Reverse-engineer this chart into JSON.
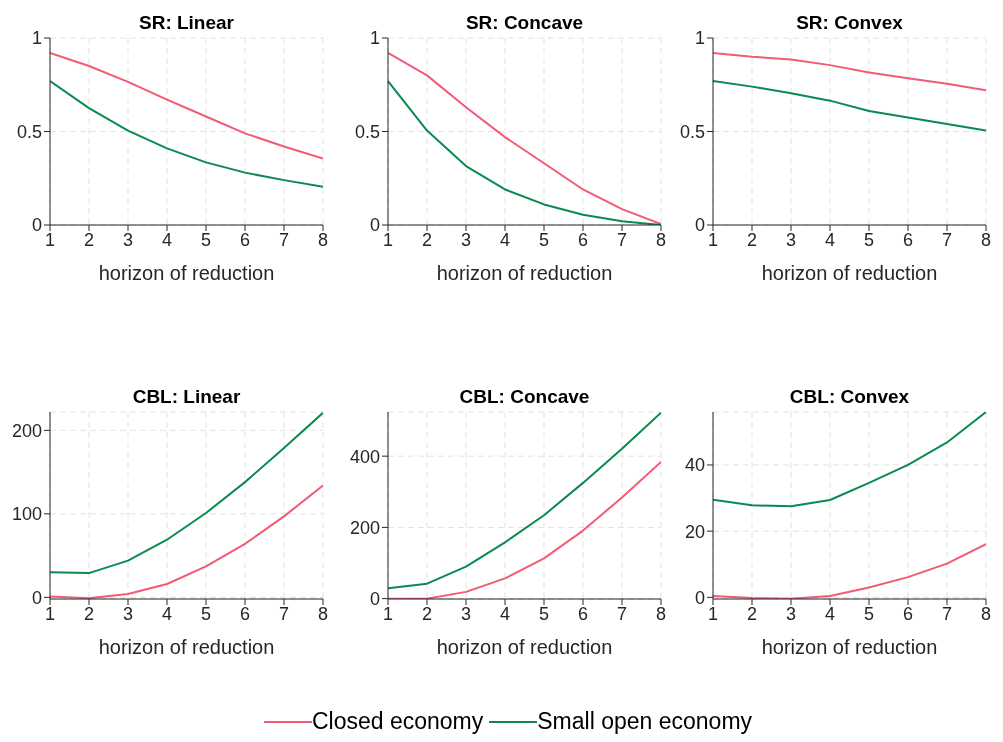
{
  "chart_data": [
    {
      "type": "line",
      "title": "SR: Linear",
      "xlabel": "horizon of reduction",
      "x": [
        1,
        2,
        3,
        4,
        5,
        6,
        7,
        8
      ],
      "xlim": [
        1,
        8
      ],
      "xticks": [
        1,
        2,
        3,
        4,
        5,
        6,
        7,
        8
      ],
      "ylim": [
        0,
        1
      ],
      "yticks": [
        0,
        0.5,
        1
      ],
      "grid": true,
      "marker": "none",
      "series": [
        {
          "color": "#f25a75",
          "values": [
            0.92,
            0.85,
            0.765,
            0.67,
            0.58,
            0.49,
            0.42,
            0.355
          ]
        },
        {
          "color": "#0a8a4f",
          "values": [
            0.77,
            0.625,
            0.505,
            0.41,
            0.335,
            0.28,
            0.24,
            0.205
          ]
        }
      ]
    },
    {
      "type": "line",
      "title": "SR: Concave",
      "xlabel": "horizon of reduction",
      "x": [
        1,
        2,
        3,
        4,
        5,
        6,
        7,
        8
      ],
      "xlim": [
        1,
        8
      ],
      "xticks": [
        1,
        2,
        3,
        4,
        5,
        6,
        7,
        8
      ],
      "ylim": [
        0,
        1
      ],
      "yticks": [
        0,
        0.5,
        1
      ],
      "grid": true,
      "marker": "none",
      "series": [
        {
          "color": "#f25a75",
          "values": [
            0.92,
            0.8,
            0.63,
            0.47,
            0.33,
            0.19,
            0.085,
            0.005
          ]
        },
        {
          "color": "#0a8a4f",
          "values": [
            0.77,
            0.505,
            0.315,
            0.19,
            0.11,
            0.055,
            0.02,
            0
          ]
        }
      ]
    },
    {
      "type": "line",
      "title": "SR: Convex",
      "xlabel": "horizon of reduction",
      "x": [
        1,
        2,
        3,
        4,
        5,
        6,
        7,
        8
      ],
      "xlim": [
        1,
        8
      ],
      "xticks": [
        1,
        2,
        3,
        4,
        5,
        6,
        7,
        8
      ],
      "ylim": [
        0,
        1
      ],
      "yticks": [
        0,
        0.5,
        1
      ],
      "grid": true,
      "marker": "none",
      "series": [
        {
          "color": "#f25a75",
          "values": [
            0.92,
            0.9,
            0.885,
            0.855,
            0.815,
            0.785,
            0.755,
            0.72
          ]
        },
        {
          "color": "#0a8a4f",
          "values": [
            0.77,
            0.74,
            0.705,
            0.665,
            0.61,
            0.575,
            0.54,
            0.505
          ]
        }
      ]
    },
    {
      "type": "line",
      "title": "CBL: Linear",
      "xlabel": "horizon of reduction",
      "x": [
        1,
        2,
        3,
        4,
        5,
        6,
        7,
        8
      ],
      "xlim": [
        1,
        8
      ],
      "xticks": [
        1,
        2,
        3,
        4,
        5,
        6,
        7,
        8
      ],
      "ylim": [
        -2,
        222
      ],
      "yticks": [
        0,
        100,
        200
      ],
      "grid": true,
      "marker": "none",
      "series": [
        {
          "color": "#f25a75",
          "values": [
            1,
            -1,
            4,
            16,
            37,
            64,
            97,
            134
          ]
        },
        {
          "color": "#0a8a4f",
          "values": [
            30,
            29,
            44,
            69,
            101,
            138,
            179,
            221
          ]
        }
      ]
    },
    {
      "type": "line",
      "title": "CBL: Concave",
      "xlabel": "horizon of reduction",
      "x": [
        1,
        2,
        3,
        4,
        5,
        6,
        7,
        8
      ],
      "xlim": [
        1,
        8
      ],
      "xticks": [
        1,
        2,
        3,
        4,
        5,
        6,
        7,
        8
      ],
      "ylim": [
        -1,
        524
      ],
      "yticks": [
        0,
        200,
        400
      ],
      "grid": true,
      "marker": "none",
      "legend": "bottom",
      "series": [
        {
          "name": "Closed economy",
          "color": "#f25a75",
          "values": [
            0,
            0,
            19,
            57,
            113,
            191,
            284,
            384
          ]
        },
        {
          "name": "Small open economy",
          "color": "#0a8a4f",
          "values": [
            29,
            42,
            90,
            158,
            234,
            325,
            421,
            522
          ]
        }
      ]
    },
    {
      "type": "line",
      "title": "CBL: Convex",
      "xlabel": "horizon of reduction",
      "x": [
        1,
        2,
        3,
        4,
        5,
        6,
        7,
        8
      ],
      "xlim": [
        1,
        8
      ],
      "xticks": [
        1,
        2,
        3,
        4,
        5,
        6,
        7,
        8
      ],
      "ylim": [
        -0.5,
        56
      ],
      "yticks": [
        0,
        20,
        40
      ],
      "grid": true,
      "marker": "none",
      "series": [
        {
          "color": "#f25a75",
          "values": [
            0.4,
            -0.2,
            -0.4,
            0.4,
            3,
            6.1,
            10.2,
            16.1
          ]
        },
        {
          "color": "#0a8a4f",
          "values": [
            29.5,
            27.8,
            27.5,
            29.4,
            34.6,
            40,
            46.8,
            56
          ]
        }
      ]
    }
  ]
}
